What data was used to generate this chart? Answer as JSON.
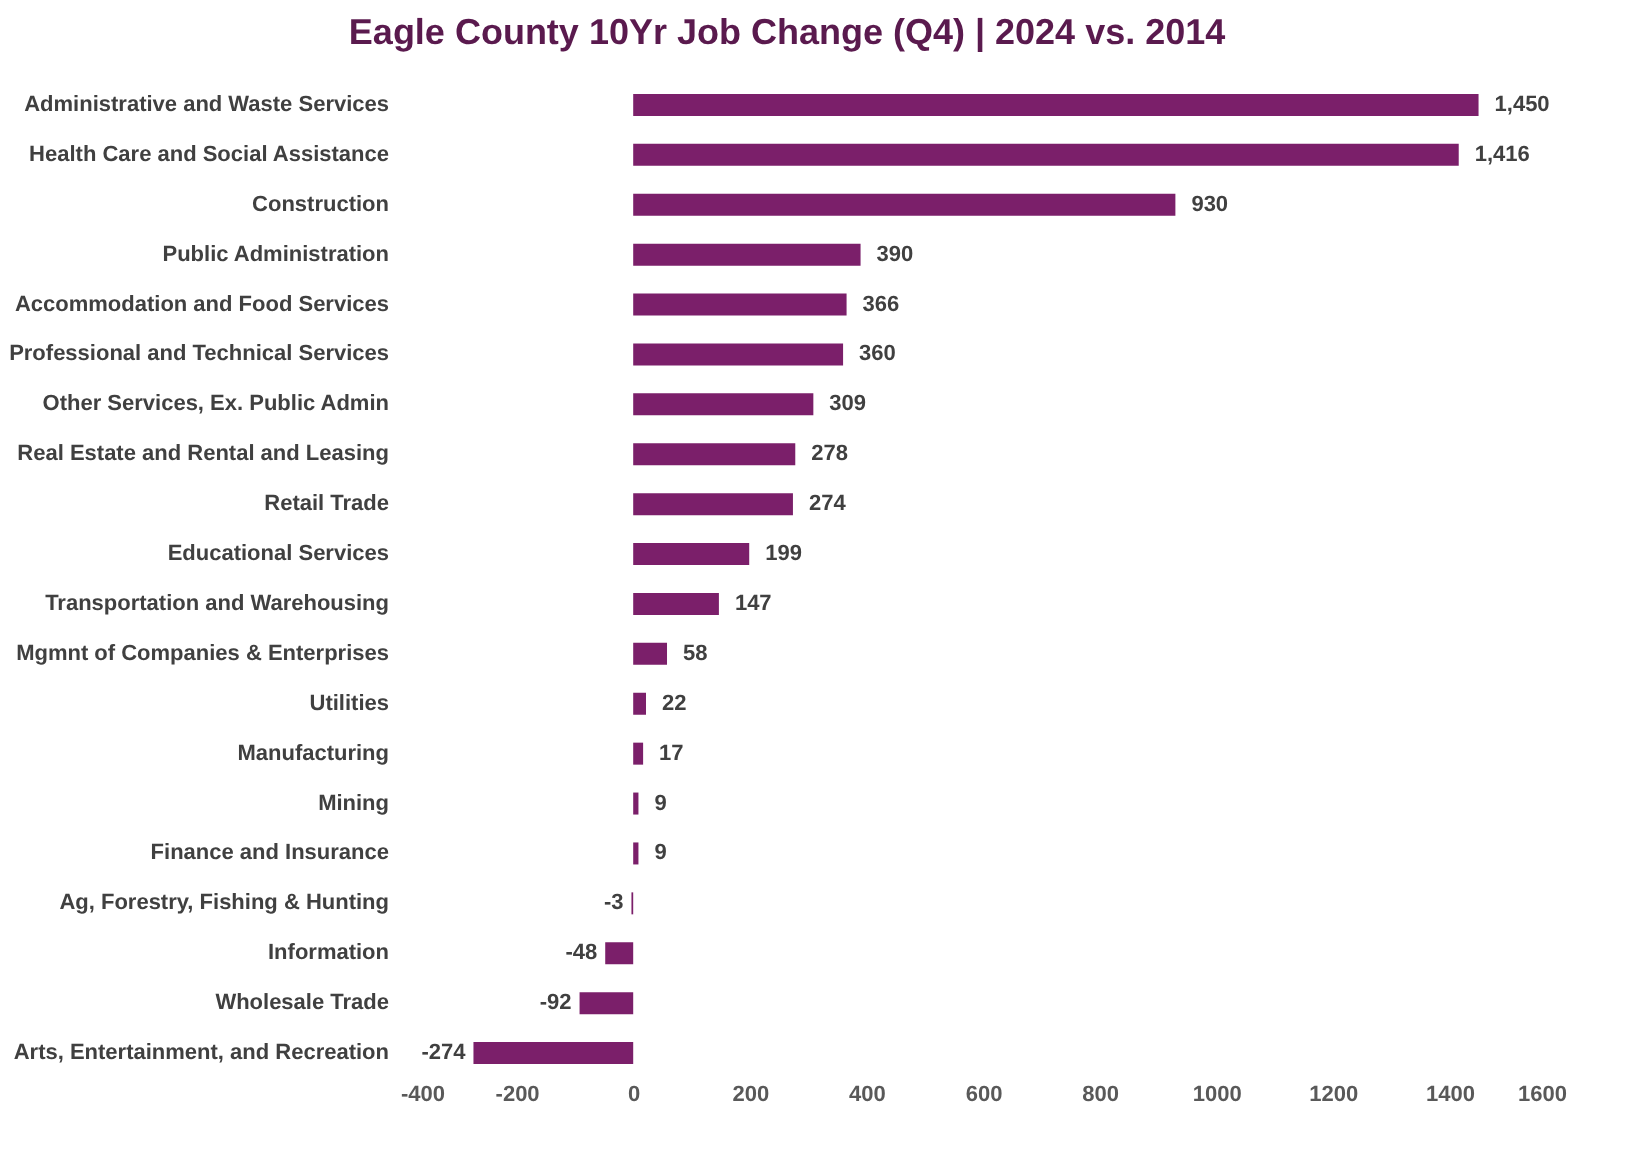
{
  "chart_data": {
    "type": "bar",
    "orientation": "horizontal",
    "title": "Eagle County 10Yr Job Change (Q4) | 2024 vs. 2014",
    "categories": [
      "Administrative and Waste Services",
      "Health Care and Social Assistance",
      "Construction",
      "Public Administration",
      "Accommodation and Food Services",
      "Professional and Technical Services",
      "Other Services, Ex. Public Admin",
      "Real Estate and Rental and Leasing",
      "Retail Trade",
      "Educational Services",
      "Transportation and Warehousing",
      "Mgmnt of Companies & Enterprises",
      "Utilities",
      "Manufacturing",
      "Mining",
      "Finance and Insurance",
      "Ag, Forestry, Fishing & Hunting",
      "Information",
      "Wholesale Trade",
      "Arts, Entertainment, and Recreation"
    ],
    "values": [
      1450,
      1416,
      930,
      390,
      366,
      360,
      309,
      278,
      274,
      199,
      147,
      58,
      22,
      17,
      9,
      9,
      -3,
      -48,
      -92,
      -274
    ],
    "value_labels": [
      "1,450",
      "1,416",
      "930",
      "390",
      "366",
      "360",
      "309",
      "278",
      "274",
      "199",
      "147",
      "58",
      "22",
      "17",
      "9",
      "9",
      "-3",
      "-48",
      "-92",
      "-274"
    ],
    "color": "#7b1f6a",
    "xlim": [
      -400,
      1600
    ],
    "xticks": [
      -400,
      -200,
      0,
      200,
      400,
      600,
      800,
      1000,
      1200,
      1400,
      1600
    ],
    "grid": false
  }
}
